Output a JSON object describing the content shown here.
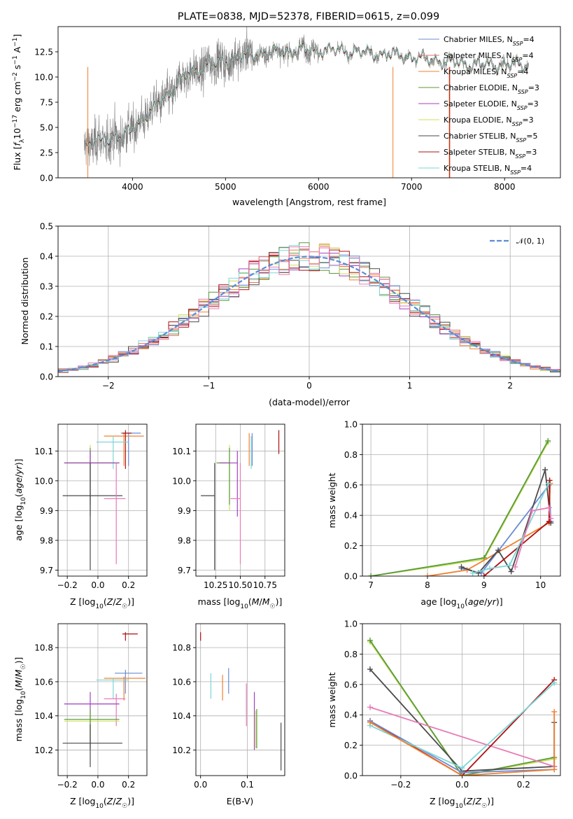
{
  "title": "PLATE=0838, MJD=52378, FIBERID=0615, z=0.099",
  "colors": {
    "chabrier_miles": "#6b8bd6",
    "salpeter_miles": "#e46e6e",
    "kroupa_miles": "#f08030",
    "chabrier_elodie": "#5a9a3a",
    "salpeter_elodie": "#a040c0",
    "kroupa_elodie": "#c8e05a",
    "chabrier_stelib": "#4a4a4a",
    "salpeter_stelib": "#b01010",
    "kroupa_stelib": "#7dd6d6",
    "data": "#7f7f7f",
    "gaussian": "#5b8bd8",
    "pink": "#e87ab8",
    "grid": "#b0b0b0"
  },
  "chart_data": [
    {
      "id": "spectrum",
      "type": "line",
      "xlabel": "wavelength [Angstrom, rest frame]",
      "ylabel": "Flux [f_λ 10^-17 erg cm^-2 s^-1 A^-1]",
      "xlim": [
        3200,
        8600
      ],
      "ylim": [
        0,
        15
      ],
      "xticks": [
        4000,
        5000,
        6000,
        7000,
        8000
      ],
      "yticks": [
        0.0,
        2.5,
        5.0,
        7.5,
        10.0,
        12.5
      ],
      "legend_position": "upper right",
      "series": [
        {
          "name": "Chabrier MILES, N_SSP=4",
          "color_key": "chabrier_miles"
        },
        {
          "name": "Salpeter MILES, N_SSP=4",
          "color_key": "salpeter_miles"
        },
        {
          "name": "Kroupa MILES, N_SSP=4",
          "color_key": "kroupa_miles"
        },
        {
          "name": "Chabrier ELODIE, N_SSP=3",
          "color_key": "chabrier_elodie"
        },
        {
          "name": "Salpeter ELODIE, N_SSP=3",
          "color_key": "salpeter_elodie"
        },
        {
          "name": "Kroupa ELODIE, N_SSP=3",
          "color_key": "kroupa_elodie"
        },
        {
          "name": "Chabrier STELIB, N_SSP=5",
          "color_key": "chabrier_stelib"
        },
        {
          "name": "Salpeter STELIB, N_SSP=3",
          "color_key": "salpeter_stelib"
        },
        {
          "name": "Kroupa STELIB, N_SSP=4",
          "color_key": "kroupa_stelib"
        }
      ],
      "continuum": {
        "x": [
          3500,
          3600,
          3700,
          3800,
          3900,
          4000,
          4100,
          4200,
          4300,
          4400,
          4500,
          4600,
          4700,
          4800,
          4900,
          5000,
          5200,
          5400,
          5600,
          5800,
          6000,
          6200,
          6400,
          6600,
          6800,
          7000,
          7200,
          7400,
          7600,
          7800,
          8000,
          8200
        ],
        "y": [
          3.0,
          3.5,
          3.6,
          4.2,
          3.9,
          5.0,
          5.8,
          6.5,
          7.6,
          8.3,
          9.5,
          10.3,
          10.6,
          11.2,
          11.3,
          11.6,
          12.1,
          12.3,
          12.5,
          12.6,
          12.7,
          12.6,
          12.5,
          12.3,
          12.2,
          12.0,
          11.7,
          11.5,
          11.3,
          11.2,
          11.2,
          11.2
        ]
      }
    },
    {
      "id": "residuals",
      "type": "line",
      "xlabel": "(data-model)/error",
      "ylabel": "Normed distribution",
      "xlim": [
        -2.5,
        2.5
      ],
      "ylim": [
        0,
        0.5
      ],
      "xticks": [
        -2,
        -1,
        0,
        1,
        2
      ],
      "yticks": [
        0.0,
        0.1,
        0.2,
        0.3,
        0.4,
        0.5
      ],
      "legend": [
        "𝒩(0, 1)"
      ],
      "legend_position": "upper right",
      "bin_width": 0.1
    },
    {
      "id": "age-vs-Z",
      "type": "scatter",
      "xlabel": "Z [log10(Z/Z☉)]",
      "ylabel": "age  [log10(age/yr)]",
      "xlim": [
        -0.26,
        0.32
      ],
      "ylim": [
        9.68,
        10.19
      ],
      "xticks": [
        -0.2,
        0.0,
        0.2
      ],
      "yticks": [
        9.7,
        9.8,
        9.9,
        10.0,
        10.1
      ],
      "points": [
        {
          "c": "chabrier_miles",
          "x": 0.2,
          "y": 10.16,
          "xerr": [
            0.05,
            0.08
          ],
          "yerr": [
            0.11,
            0.0
          ]
        },
        {
          "c": "kroupa_miles",
          "x": 0.17,
          "y": 10.15,
          "xerr": [
            0.13,
            0.13
          ],
          "yerr": [
            0.1,
            0.01
          ]
        },
        {
          "c": "salpeter_stelib",
          "x": 0.18,
          "y": 10.16,
          "xerr": [
            0.02,
            0.04
          ],
          "yerr": [
            0.12,
            0.01
          ]
        },
        {
          "c": "kroupa_stelib",
          "x": 0.1,
          "y": 10.13,
          "xerr": [
            0.11,
            0.1
          ],
          "yerr": [
            0.09,
            0.02
          ]
        },
        {
          "c": "kroupa_elodie",
          "x": -0.05,
          "y": 10.06,
          "xerr": [
            0.17,
            0.19
          ],
          "yerr": [
            0.16,
            0.06
          ]
        },
        {
          "c": "chabrier_elodie",
          "x": -0.05,
          "y": 10.06,
          "xerr": [
            0.17,
            0.19
          ],
          "yerr": [
            0.14,
            0.05
          ]
        },
        {
          "c": "salpeter_elodie",
          "x": -0.05,
          "y": 10.06,
          "xerr": [
            0.17,
            0.19
          ],
          "yerr": [
            0.18,
            0.04
          ]
        },
        {
          "c": "chabrier_stelib",
          "x": -0.05,
          "y": 9.95,
          "xerr": [
            0.18,
            0.21
          ],
          "yerr": [
            0.25,
            0.11
          ]
        },
        {
          "c": "pink",
          "x": 0.12,
          "y": 9.94,
          "xerr": [
            0.08,
            0.06
          ],
          "yerr": [
            0.22,
            0.12
          ]
        }
      ]
    },
    {
      "id": "age-vs-mass",
      "type": "scatter",
      "xlabel": "mass [log10(M/M☉)]",
      "ylabel": "",
      "xlim": [
        10.05,
        10.95
      ],
      "ylim": [
        9.68,
        10.19
      ],
      "xticks": [
        10.25,
        10.5,
        10.75
      ],
      "yticks": [
        9.7,
        9.8,
        9.9,
        10.0,
        10.1
      ],
      "points": [
        {
          "c": "chabrier_miles",
          "x": 10.62,
          "y": 10.16,
          "xerr": [
            0.0,
            0.0
          ],
          "yerr": [
            0.11,
            0.0
          ]
        },
        {
          "c": "kroupa_miles",
          "x": 10.59,
          "y": 10.15,
          "xerr": [
            0.0,
            0.0
          ],
          "yerr": [
            0.1,
            0.01
          ]
        },
        {
          "c": "salpeter_stelib",
          "x": 10.89,
          "y": 10.16,
          "xerr": [
            0.0,
            0.0
          ],
          "yerr": [
            0.07,
            0.01
          ]
        },
        {
          "c": "kroupa_stelib",
          "x": 10.61,
          "y": 10.13,
          "xerr": [
            0.0,
            0.0
          ],
          "yerr": [
            0.09,
            0.02
          ]
        },
        {
          "c": "kroupa_elodie",
          "x": 10.39,
          "y": 10.06,
          "xerr": [
            0.13,
            0.0
          ],
          "yerr": [
            0.16,
            0.06
          ]
        },
        {
          "c": "chabrier_elodie",
          "x": 10.39,
          "y": 10.06,
          "xerr": [
            0.13,
            0.0
          ],
          "yerr": [
            0.14,
            0.05
          ]
        },
        {
          "c": "salpeter_elodie",
          "x": 10.47,
          "y": 10.06,
          "xerr": [
            0.18,
            0.0
          ],
          "yerr": [
            0.18,
            0.04
          ]
        },
        {
          "c": "chabrier_stelib",
          "x": 10.24,
          "y": 9.95,
          "xerr": [
            0.14,
            0.0
          ],
          "yerr": [
            0.25,
            0.11
          ]
        },
        {
          "c": "pink",
          "x": 10.5,
          "y": 9.94,
          "xerr": [
            0.1,
            0.0
          ],
          "yerr": [
            0.22,
            0.12
          ]
        }
      ]
    },
    {
      "id": "weight-vs-age",
      "type": "line",
      "xlabel": "age  [log10(age/yr)]",
      "ylabel": "mass weight",
      "xlim": [
        6.85,
        10.35
      ],
      "ylim": [
        0,
        1
      ],
      "xticks": [
        7,
        8,
        9,
        10
      ],
      "yticks": [
        0.0,
        0.2,
        0.4,
        0.6,
        0.8,
        1.0
      ],
      "series": [
        {
          "c": "kroupa_elodie",
          "x": [
            7.0,
            9.0,
            10.13
          ],
          "y": [
            0.0,
            0.11,
            0.88
          ]
        },
        {
          "c": "chabrier_elodie",
          "x": [
            7.0,
            9.0,
            10.13
          ],
          "y": [
            0.0,
            0.12,
            0.89
          ]
        },
        {
          "c": "chabrier_miles",
          "x": [
            8.6,
            8.95,
            10.15,
            10.18
          ],
          "y": [
            0.05,
            0.02,
            0.6,
            0.36
          ]
        },
        {
          "c": "kroupa_miles",
          "x": [
            8.0,
            8.7,
            10.15,
            10.17
          ],
          "y": [
            0.0,
            0.04,
            0.35,
            0.61
          ]
        },
        {
          "c": "chabrier_stelib",
          "x": [
            8.6,
            8.9,
            9.25,
            9.48,
            10.08,
            10.18
          ],
          "y": [
            0.06,
            0.02,
            0.17,
            0.03,
            0.7,
            0.35
          ]
        },
        {
          "c": "salpeter_stelib",
          "x": [
            9.0,
            10.15,
            10.16
          ],
          "y": [
            0.0,
            0.36,
            0.63
          ]
        },
        {
          "c": "kroupa_stelib",
          "x": [
            8.8,
            9.1,
            9.45,
            10.14
          ],
          "y": [
            0.02,
            0.05,
            0.07,
            0.61
          ]
        },
        {
          "c": "pink",
          "x": [
            9.55,
            9.85,
            10.15,
            10.18
          ],
          "y": [
            0.06,
            0.43,
            0.45,
            0.38
          ]
        }
      ]
    },
    {
      "id": "mass-vs-Z",
      "type": "scatter",
      "xlabel": "Z [log10(Z/Z☉)]",
      "ylabel": "mass [log10(M/M☉)]",
      "xlim": [
        -0.26,
        0.32
      ],
      "ylim": [
        10.05,
        10.94
      ],
      "xticks": [
        -0.2,
        0.0,
        0.2
      ],
      "yticks": [
        10.2,
        10.4,
        10.6,
        10.8
      ],
      "points": [
        {
          "c": "salpeter_stelib",
          "x": 0.18,
          "y": 10.88,
          "xerr": [
            0.02,
            0.08
          ],
          "yerr": [
            0.04,
            0.01
          ]
        },
        {
          "c": "chabrier_miles",
          "x": 0.18,
          "y": 10.65,
          "xerr": [
            0.07,
            0.11
          ],
          "yerr": [
            0.12,
            0.02
          ]
        },
        {
          "c": "kroupa_miles",
          "x": 0.17,
          "y": 10.62,
          "xerr": [
            0.13,
            0.14
          ],
          "yerr": [
            0.13,
            0.01
          ]
        },
        {
          "c": "kroupa_stelib",
          "x": 0.1,
          "y": 10.61,
          "xerr": [
            0.11,
            0.1
          ],
          "yerr": [
            0.11,
            0.01
          ]
        },
        {
          "c": "pink",
          "x": 0.12,
          "y": 10.5,
          "xerr": [
            0.08,
            0.06
          ],
          "yerr": [
            0.16,
            0.03
          ]
        },
        {
          "c": "salpeter_elodie",
          "x": -0.05,
          "y": 10.47,
          "xerr": [
            0.17,
            0.19
          ],
          "yerr": [
            0.27,
            0.07
          ]
        },
        {
          "c": "kroupa_elodie",
          "x": -0.05,
          "y": 10.37,
          "xerr": [
            0.17,
            0.19
          ],
          "yerr": [
            0.16,
            0.06
          ]
        },
        {
          "c": "chabrier_elodie",
          "x": -0.05,
          "y": 10.38,
          "xerr": [
            0.17,
            0.19
          ],
          "yerr": [
            0.17,
            0.06
          ]
        },
        {
          "c": "chabrier_stelib",
          "x": -0.05,
          "y": 10.24,
          "xerr": [
            0.18,
            0.21
          ],
          "yerr": [
            0.14,
            0.11
          ]
        }
      ]
    },
    {
      "id": "mass-vs-EBV",
      "type": "scatter",
      "xlabel": "E(B-V)",
      "ylabel": "",
      "xlim": [
        -0.01,
        0.18
      ],
      "ylim": [
        10.05,
        10.94
      ],
      "xticks": [
        0.0,
        0.1
      ],
      "yticks": [
        10.2,
        10.4,
        10.6,
        10.8
      ],
      "points": [
        {
          "c": "salpeter_stelib",
          "x": 0.0,
          "y": 10.88,
          "yerr": [
            0.04,
            0.01
          ]
        },
        {
          "c": "kroupa_stelib",
          "x": 0.022,
          "y": 10.61,
          "yerr": [
            0.11,
            0.04
          ]
        },
        {
          "c": "kroupa_miles",
          "x": 0.047,
          "y": 10.62,
          "yerr": [
            0.13,
            0.02
          ]
        },
        {
          "c": "chabrier_miles",
          "x": 0.06,
          "y": 10.65,
          "yerr": [
            0.12,
            0.03
          ]
        },
        {
          "c": "pink",
          "x": 0.098,
          "y": 10.5,
          "yerr": [
            0.16,
            0.09
          ]
        },
        {
          "c": "salpeter_elodie",
          "x": 0.115,
          "y": 10.47,
          "yerr": [
            0.27,
            0.07
          ]
        },
        {
          "c": "chabrier_elodie",
          "x": 0.12,
          "y": 10.38,
          "yerr": [
            0.17,
            0.06
          ]
        },
        {
          "c": "kroupa_elodie",
          "x": 0.118,
          "y": 10.37,
          "yerr": [
            0.16,
            0.06
          ]
        },
        {
          "c": "chabrier_stelib",
          "x": 0.172,
          "y": 10.24,
          "yerr": [
            0.16,
            0.12
          ]
        }
      ]
    },
    {
      "id": "weight-vs-Z",
      "type": "line",
      "xlabel": "Z [log10(Z/Z☉)]",
      "ylabel": "mass weight",
      "xlim": [
        -0.325,
        0.32
      ],
      "ylim": [
        0,
        1
      ],
      "xticks": [
        -0.2,
        0.0,
        0.2
      ],
      "yticks": [
        0.0,
        0.2,
        0.4,
        0.6,
        0.8,
        1.0
      ],
      "series": [
        {
          "c": "kroupa_elodie",
          "x": [
            -0.3,
            0.0,
            0.3
          ],
          "y": [
            0.88,
            0.0,
            0.11
          ]
        },
        {
          "c": "chabrier_elodie",
          "x": [
            -0.3,
            0.0,
            0.3
          ],
          "y": [
            0.89,
            0.0,
            0.12
          ]
        },
        {
          "c": "chabrier_stelib",
          "x": [
            -0.3,
            0.0,
            0.3,
            0.3
          ],
          "y": [
            0.7,
            0.03,
            0.06,
            0.35
          ]
        },
        {
          "c": "pink",
          "x": [
            -0.3,
            0.3
          ],
          "y": [
            0.45,
            0.06
          ]
        },
        {
          "c": "salpeter_stelib",
          "x": [
            -0.3,
            0.0,
            0.3
          ],
          "y": [
            0.36,
            0.0,
            0.63
          ]
        },
        {
          "c": "chabrier_miles",
          "x": [
            -0.3,
            0.0,
            0.3
          ],
          "y": [
            0.36,
            0.02,
            0.04
          ]
        },
        {
          "c": "kroupa_stelib",
          "x": [
            -0.3,
            0.0,
            0.3
          ],
          "y": [
            0.33,
            0.05,
            0.61
          ]
        },
        {
          "c": "kroupa_miles",
          "x": [
            -0.3,
            0.0,
            0.3,
            0.3
          ],
          "y": [
            0.35,
            0.0,
            0.04,
            0.42
          ]
        }
      ]
    }
  ]
}
